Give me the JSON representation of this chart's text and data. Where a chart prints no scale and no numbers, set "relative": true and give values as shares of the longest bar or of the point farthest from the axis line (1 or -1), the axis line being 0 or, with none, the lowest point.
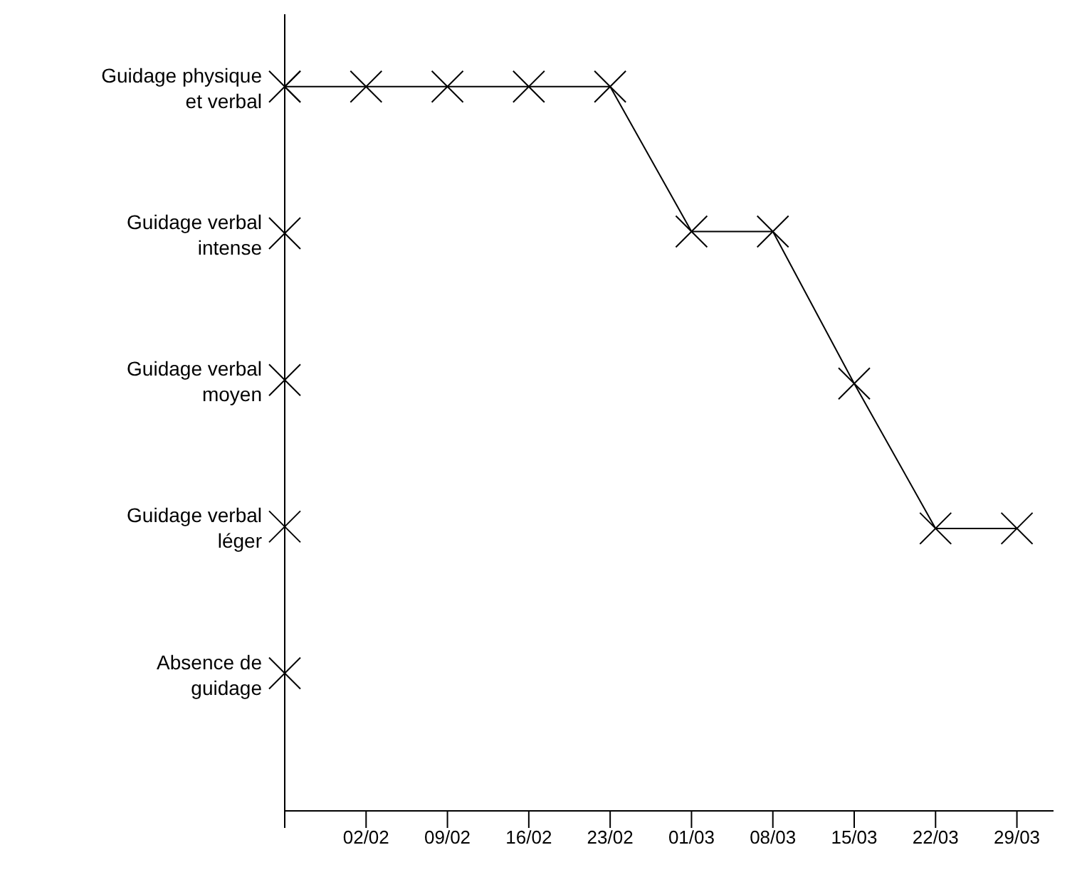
{
  "chart_data": {
    "type": "line",
    "relative": true,
    "categories": [
      null,
      "02/02",
      "09/02",
      "16/02",
      "23/02",
      "01/03",
      "08/03",
      "15/03",
      "22/03",
      "29/03"
    ],
    "values": [
      1,
      1,
      1,
      1,
      1,
      0.8,
      0.8,
      0.59,
      0.39,
      0.39
    ],
    "annotations": [
      "Guidage physique et verbal",
      "Guidage verbal intense",
      "Guidage verbal moyen",
      "Guidage verbal léger",
      "Absence de guidage"
    ],
    "color": "#000000",
    "marker": "cross",
    "line_style": "solid"
  }
}
